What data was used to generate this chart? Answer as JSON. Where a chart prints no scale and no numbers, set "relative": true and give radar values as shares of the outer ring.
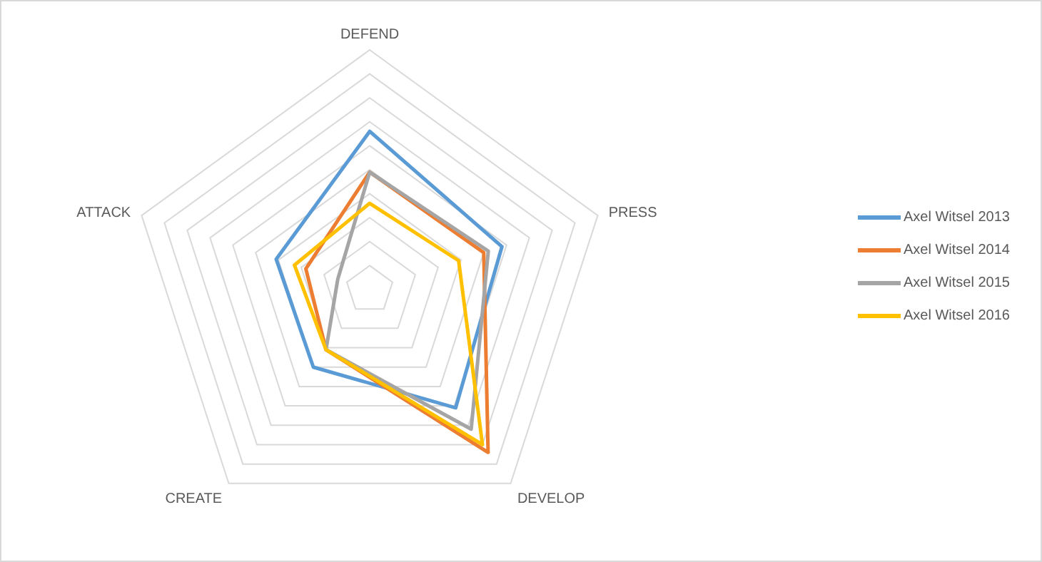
{
  "chart_data": {
    "type": "radar",
    "relative": true,
    "categories": [
      "DEFEND",
      "PRESS",
      "DEVELOP",
      "CREATE",
      "ATTACK"
    ],
    "grid": true,
    "legend": "right",
    "series": [
      {
        "name": "Axel Witsel 2013",
        "color": "#5b9bd5",
        "values": [
          0.66,
          0.58,
          0.61,
          0.4,
          0.41
        ]
      },
      {
        "name": "Axel Witsel 2014",
        "color": "#ed7d31",
        "values": [
          0.49,
          0.5,
          0.84,
          0.31,
          0.28
        ]
      },
      {
        "name": "Axel Witsel 2015",
        "color": "#a5a5a5",
        "values": [
          0.49,
          0.52,
          0.72,
          0.31,
          0.14
        ]
      },
      {
        "name": "Axel Witsel 2016",
        "color": "#ffc000",
        "values": [
          0.36,
          0.39,
          0.8,
          0.31,
          0.33
        ]
      }
    ]
  }
}
